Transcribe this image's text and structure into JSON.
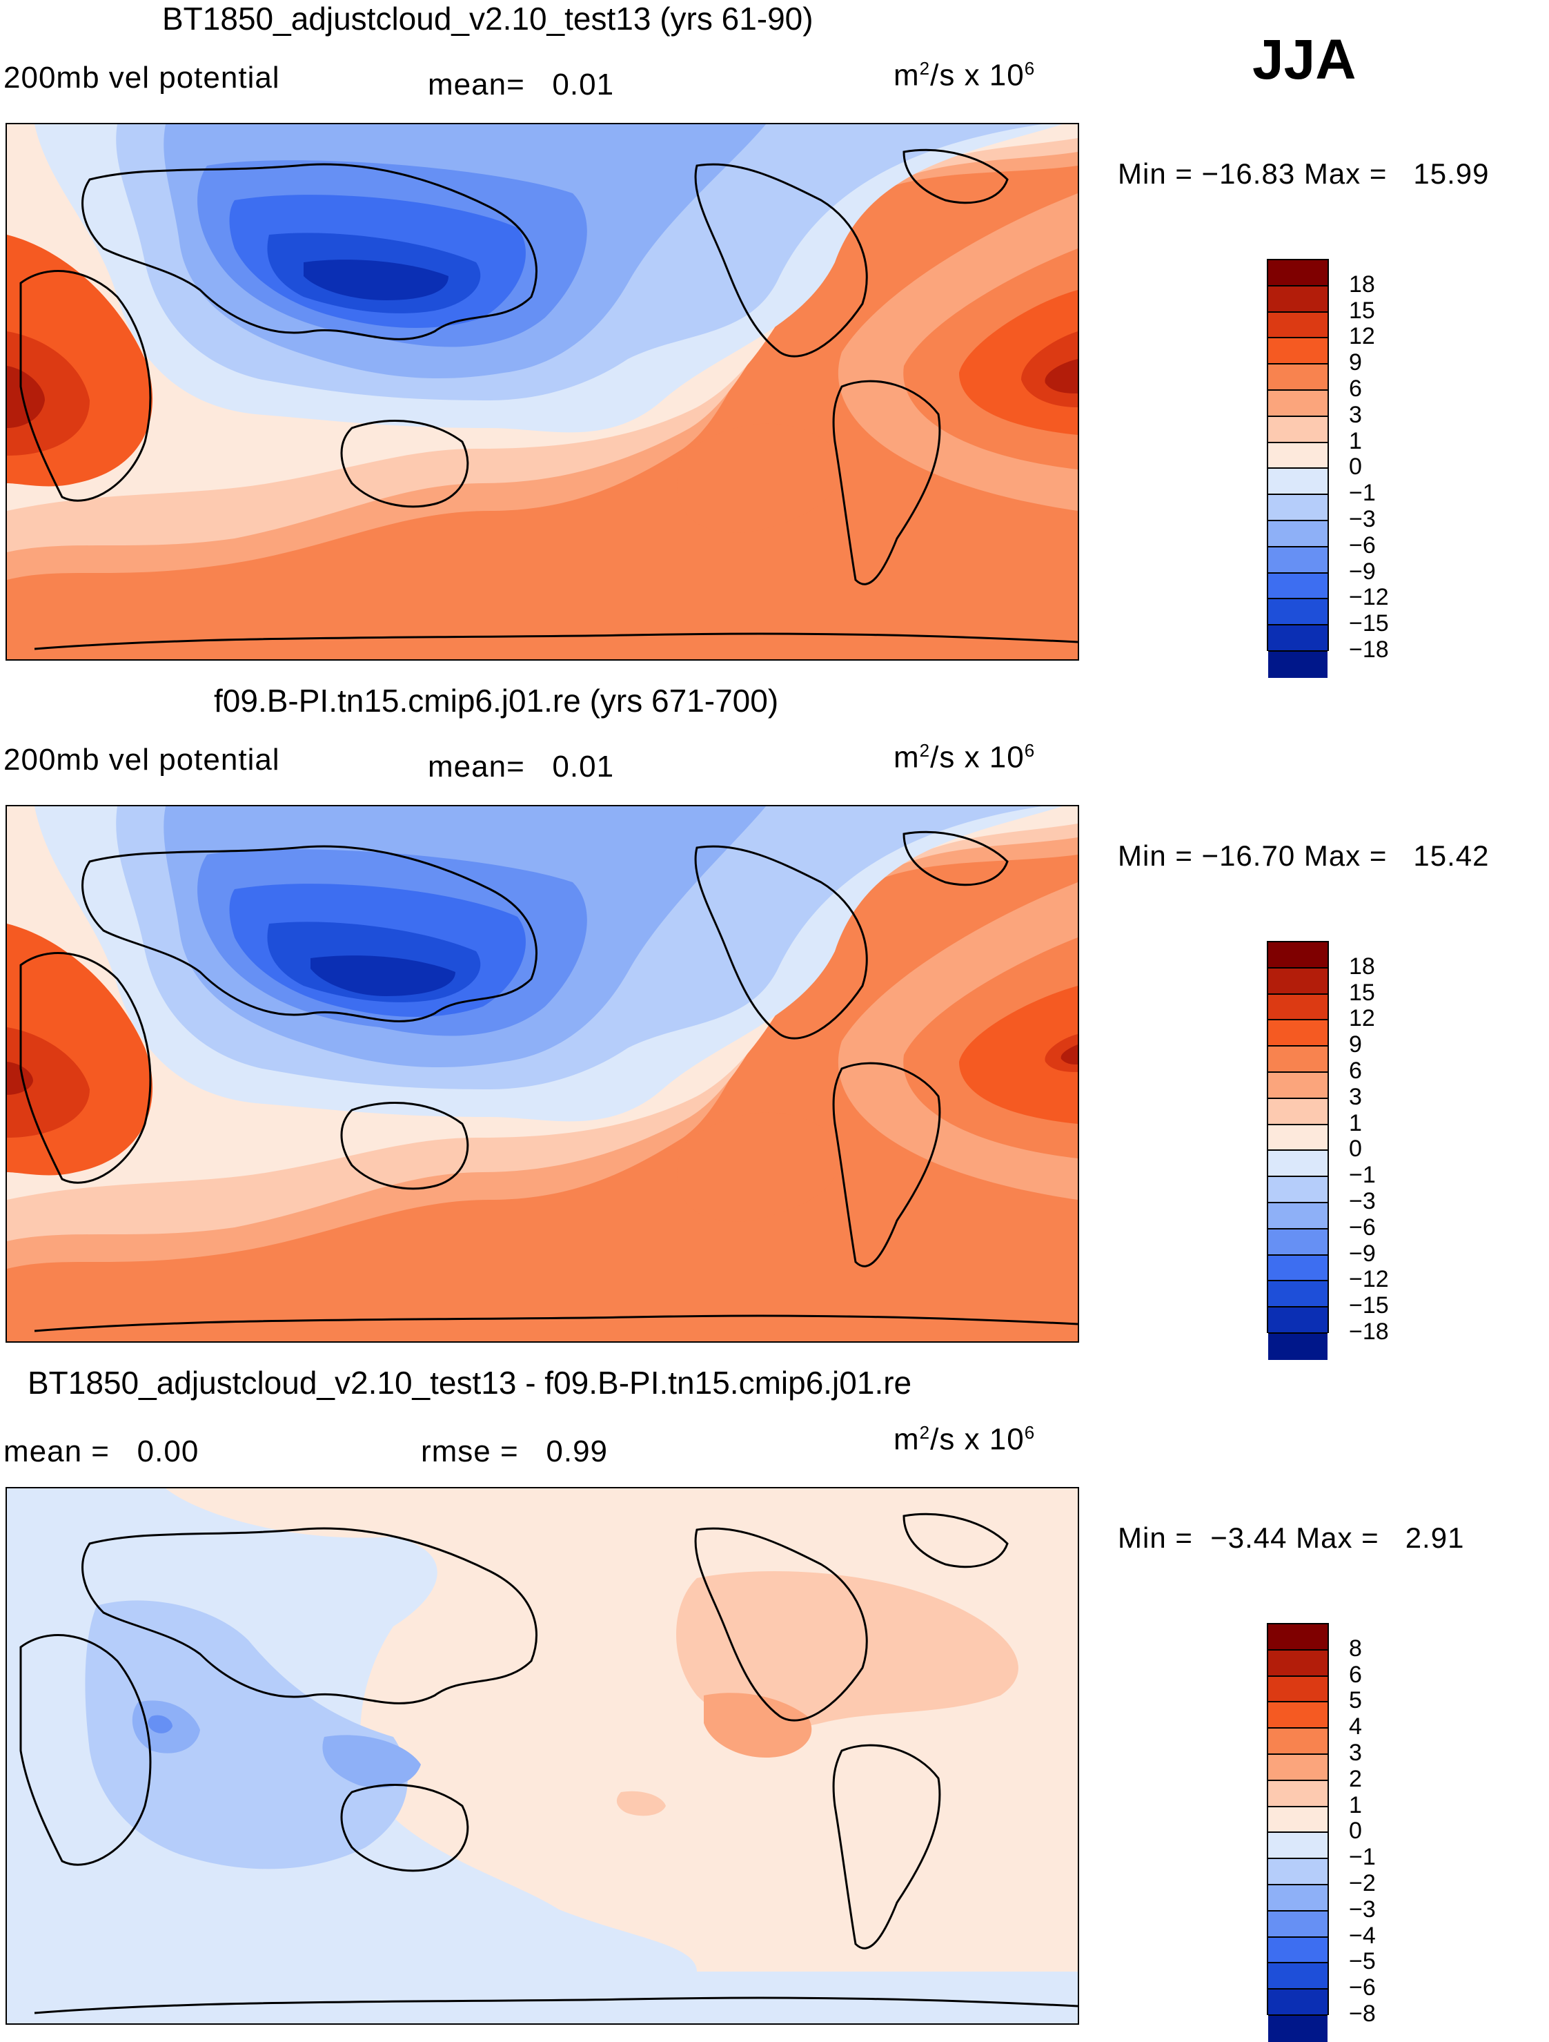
{
  "season": "JJA",
  "units_base": "m",
  "units_exp": "2",
  "units_rest": "/s x 10",
  "units_exp2": "6",
  "panels": [
    {
      "title": "BT1850_adjustcloud_v2.10_test13 (yrs 61-90)",
      "variable": "200mb vel potential",
      "stat1": "mean=   0.01",
      "stat2": "",
      "minmax": "Min = −16.83 Max =   15.99",
      "levels": [
        "18",
        "15",
        "12",
        "9",
        "6",
        "3",
        "1",
        "0",
        "−1",
        "−3",
        "−6",
        "−9",
        "−12",
        "−15",
        "−18"
      ],
      "colors": [
        "#7f0000",
        "#b31d0a",
        "#dc3a13",
        "#f55a22",
        "#f8834f",
        "#fba57c",
        "#fdcab0",
        "#fde9dc",
        "#dbe8fb",
        "#b5cdfa",
        "#8eb0f7",
        "#6690f4",
        "#3d6ef1",
        "#1e4fd9",
        "#0b2fb4",
        "#00178a"
      ]
    },
    {
      "title": "f09.B-PI.tn15.cmip6.j01.re (yrs 671-700)",
      "variable": "200mb vel potential",
      "stat1": "mean=   0.01",
      "stat2": "",
      "minmax": "Min = −16.70 Max =   15.42",
      "levels": [
        "18",
        "15",
        "12",
        "9",
        "6",
        "3",
        "1",
        "0",
        "−1",
        "−3",
        "−6",
        "−9",
        "−12",
        "−15",
        "−18"
      ],
      "colors": [
        "#7f0000",
        "#b31d0a",
        "#dc3a13",
        "#f55a22",
        "#f8834f",
        "#fba57c",
        "#fdcab0",
        "#fde9dc",
        "#dbe8fb",
        "#b5cdfa",
        "#8eb0f7",
        "#6690f4",
        "#3d6ef1",
        "#1e4fd9",
        "#0b2fb4",
        "#00178a"
      ]
    },
    {
      "title": "BT1850_adjustcloud_v2.10_test13 - f09.B-PI.tn15.cmip6.j01.re",
      "variable": "",
      "stat1": "mean =   0.00",
      "stat2": "rmse =   0.99",
      "minmax": "Min =  −3.44 Max =   2.91",
      "levels": [
        "8",
        "6",
        "5",
        "4",
        "3",
        "2",
        "1",
        "0",
        "−1",
        "−2",
        "−3",
        "−4",
        "−5",
        "−6",
        "−8"
      ],
      "colors": [
        "#7f0000",
        "#b31d0a",
        "#dc3a13",
        "#f55a22",
        "#f8834f",
        "#fba57c",
        "#fdcab0",
        "#fde9dc",
        "#dbe8fb",
        "#b5cdfa",
        "#8eb0f7",
        "#6690f4",
        "#3d6ef1",
        "#1e4fd9",
        "#0b2fb4",
        "#00178a"
      ]
    }
  ]
}
